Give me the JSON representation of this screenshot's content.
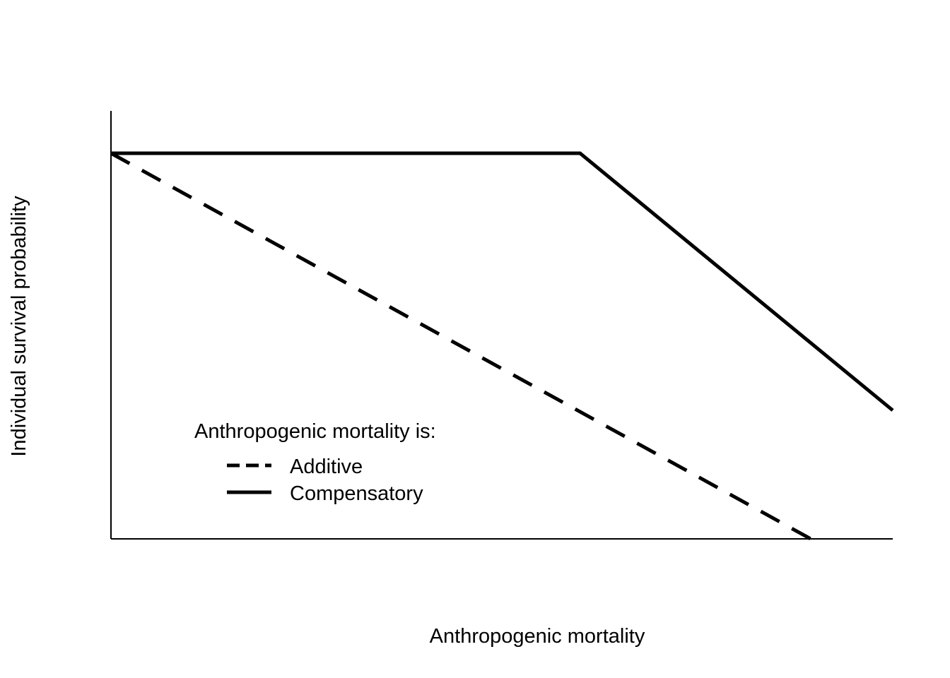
{
  "chart_data": {
    "type": "line",
    "title": "",
    "xlabel": "Anthropogenic mortality",
    "ylabel": "Individual survival probability",
    "xlim": [
      0,
      1
    ],
    "ylim": [
      0,
      1
    ],
    "grid": false,
    "axes_ticks": false,
    "legend": {
      "title": "Anthropogenic mortality is:",
      "placement": "bottom-left"
    },
    "series": [
      {
        "name": "Additive",
        "style": "dashed",
        "color": "#000000",
        "x": [
          0,
          0.895
        ],
        "y": [
          0.9,
          0
        ]
      },
      {
        "name": "Compensatory",
        "style": "solid",
        "color": "#000000",
        "x": [
          0,
          0.6,
          1.0
        ],
        "y": [
          0.9,
          0.9,
          0.3
        ]
      }
    ]
  }
}
